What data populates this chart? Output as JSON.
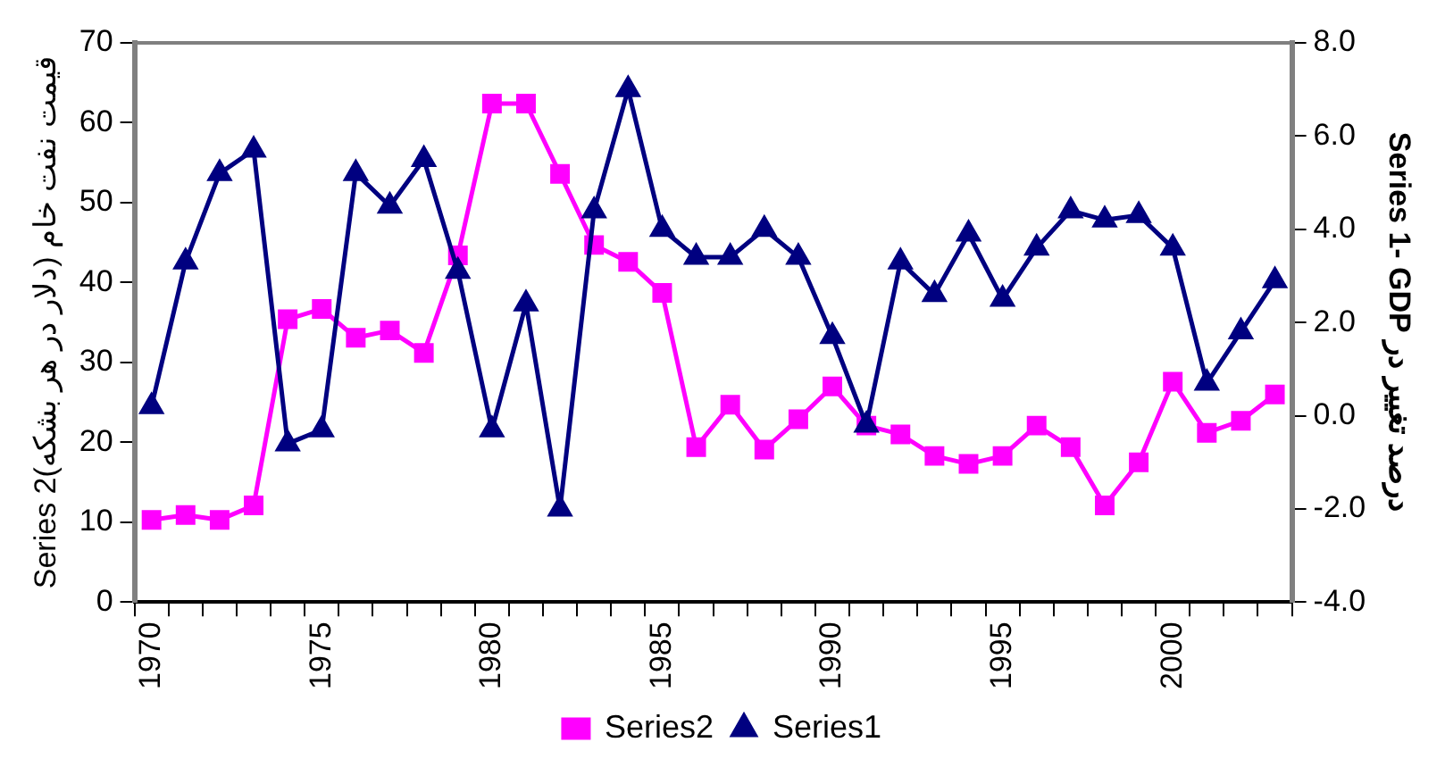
{
  "chart_data": {
    "type": "line",
    "ylabel": "Series 2(قیمت نفت خام (دلار در هر بشکه",
    "y2label": "Series 1- GDP درصد تغییر در",
    "categories": [
      "1970",
      null,
      null,
      null,
      null,
      "1975",
      null,
      null,
      null,
      null,
      "1980",
      null,
      null,
      null,
      null,
      "1985",
      null,
      null,
      null,
      null,
      "1990",
      null,
      null,
      null,
      null,
      "1995",
      null,
      null,
      null,
      null,
      "2000",
      null,
      null,
      null
    ],
    "series": [
      {
        "name": "Series2",
        "color": "#ff00ff",
        "marker": "square",
        "values": [
          10.3,
          10.9,
          10.3,
          12.1,
          35.4,
          36.7,
          33.1,
          34.0,
          31.2,
          43.4,
          62.4,
          62.4,
          53.6,
          44.7,
          42.6,
          38.7,
          19.4,
          24.7,
          19.1,
          22.9,
          27.0,
          22.1,
          21.0,
          18.3,
          17.3,
          18.3,
          22.1,
          19.4,
          12.1,
          17.5,
          27.6,
          21.2,
          22.7,
          26.0
        ]
      },
      {
        "name": "Series1",
        "color": "#000080",
        "marker": "triangle",
        "axis": "y2",
        "values": [
          0.2,
          3.3,
          5.2,
          5.7,
          -0.6,
          -0.3,
          5.2,
          4.5,
          5.5,
          3.1,
          -0.3,
          2.4,
          -2.0,
          4.4,
          7.0,
          4.0,
          3.4,
          3.4,
          4.0,
          3.4,
          1.7,
          -0.2,
          3.3,
          2.6,
          3.9,
          2.5,
          3.6,
          4.4,
          4.2,
          4.3,
          3.6,
          0.7,
          1.8,
          2.9
        ]
      }
    ],
    "ylim": [
      0,
      70
    ],
    "yticks": [
      0,
      10,
      20,
      30,
      40,
      50,
      60,
      70
    ],
    "y2lim": [
      -4,
      8
    ],
    "y2ticks": [
      {
        "value": -4,
        "label": "-4.0"
      },
      {
        "value": -2,
        "label": "-2.0"
      },
      {
        "value": 0,
        "label": "0.0"
      },
      {
        "value": 2,
        "label": "2.0"
      },
      {
        "value": 4,
        "label": "4.0"
      },
      {
        "value": 6,
        "label": "6.0"
      },
      {
        "value": 8,
        "label": "8.0"
      }
    ],
    "grid": false,
    "legend": "bottom",
    "line_style": "solid"
  }
}
